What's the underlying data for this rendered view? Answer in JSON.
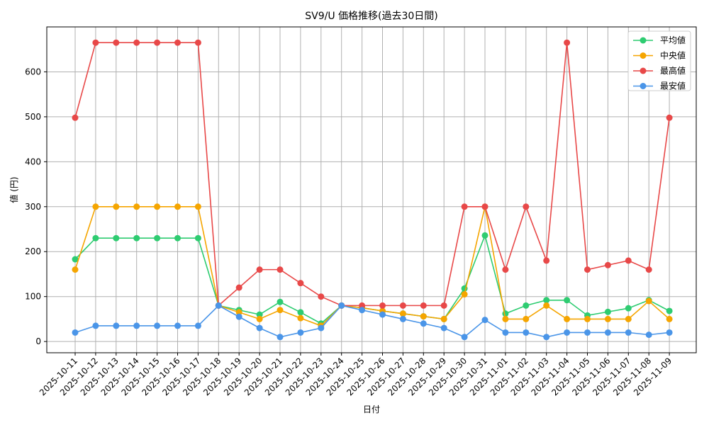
{
  "chart_data": {
    "type": "line",
    "title": "SV9/U 価格推移(過去30日間)",
    "xlabel": "日付",
    "ylabel": "値 (円)",
    "ylim": [
      -25,
      700
    ],
    "yticks": [
      0,
      100,
      200,
      300,
      400,
      500,
      600
    ],
    "grid": true,
    "legend_position": "top-right",
    "categories": [
      "2025-10-11",
      "2025-10-12",
      "2025-10-13",
      "2025-10-14",
      "2025-10-15",
      "2025-10-16",
      "2025-10-17",
      "2025-10-18",
      "2025-10-19",
      "2025-10-20",
      "2025-10-21",
      "2025-10-22",
      "2025-10-23",
      "2025-10-24",
      "2025-10-25",
      "2025-10-26",
      "2025-10-27",
      "2025-10-28",
      "2025-10-29",
      "2025-10-30",
      "2025-10-31",
      "2025-11-01",
      "2025-11-02",
      "2025-11-03",
      "2025-11-04",
      "2025-11-05",
      "2025-11-06",
      "2025-11-07",
      "2025-11-08",
      "2025-11-09"
    ],
    "series": [
      {
        "name": "平均値",
        "color": "#2ecc71",
        "values": [
          183,
          230,
          230,
          230,
          230,
          230,
          230,
          80,
          70,
          60,
          88,
          65,
          40,
          80,
          75,
          68,
          62,
          56,
          50,
          118,
          236,
          62,
          80,
          92,
          92,
          58,
          66,
          74,
          92,
          68
        ]
      },
      {
        "name": "中央値",
        "color": "#f5a500",
        "values": [
          160,
          300,
          300,
          300,
          300,
          300,
          300,
          80,
          65,
          50,
          70,
          52,
          35,
          80,
          75,
          68,
          62,
          56,
          50,
          105,
          300,
          50,
          50,
          80,
          50,
          50,
          50,
          50,
          90,
          50
        ]
      },
      {
        "name": "最高値",
        "color": "#e84848",
        "values": [
          498,
          665,
          665,
          665,
          665,
          665,
          665,
          80,
          120,
          160,
          160,
          130,
          100,
          80,
          80,
          80,
          80,
          80,
          80,
          300,
          300,
          160,
          300,
          180,
          665,
          160,
          170,
          180,
          160,
          498
        ]
      },
      {
        "name": "最安値",
        "color": "#4a95e8",
        "values": [
          20,
          35,
          35,
          35,
          35,
          35,
          35,
          80,
          55,
          30,
          10,
          20,
          30,
          80,
          70,
          60,
          50,
          40,
          30,
          10,
          48,
          20,
          20,
          10,
          20,
          20,
          20,
          20,
          15,
          20
        ]
      }
    ]
  }
}
